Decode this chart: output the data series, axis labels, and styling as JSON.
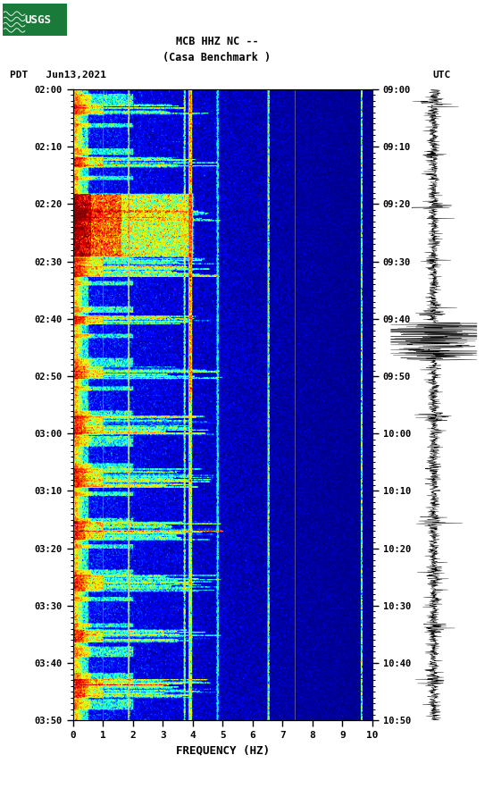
{
  "title_line1": "MCB HHZ NC --",
  "title_line2": "(Casa Benchmark )",
  "left_label": "PDT   Jun13,2021",
  "right_label": "UTC",
  "xlabel": "FREQUENCY (HZ)",
  "freq_min": 0,
  "freq_max": 10,
  "freq_ticks": [
    0,
    1,
    2,
    3,
    4,
    5,
    6,
    7,
    8,
    9,
    10
  ],
  "time_labels_left": [
    "02:00",
    "02:10",
    "02:20",
    "02:30",
    "02:40",
    "02:50",
    "03:00",
    "03:10",
    "03:20",
    "03:30",
    "03:40",
    "03:50"
  ],
  "time_labels_right": [
    "09:00",
    "09:10",
    "09:20",
    "09:30",
    "09:40",
    "09:50",
    "10:00",
    "10:10",
    "10:20",
    "10:30",
    "10:40",
    "10:50"
  ],
  "n_time_bins": 600,
  "n_freq_bins": 500,
  "bg_color": "white",
  "spectrogram_cmap": "jet",
  "seed": 12345,
  "vline_freqs": [
    1.0,
    1.85,
    3.85,
    4.8,
    6.5,
    7.4
  ],
  "vline_color": "#b0a080",
  "vline_alpha": 0.6,
  "logo_color": "#1a7a3a",
  "logo_text_color": "white",
  "figsize": [
    5.52,
    8.92
  ],
  "dpi": 100
}
